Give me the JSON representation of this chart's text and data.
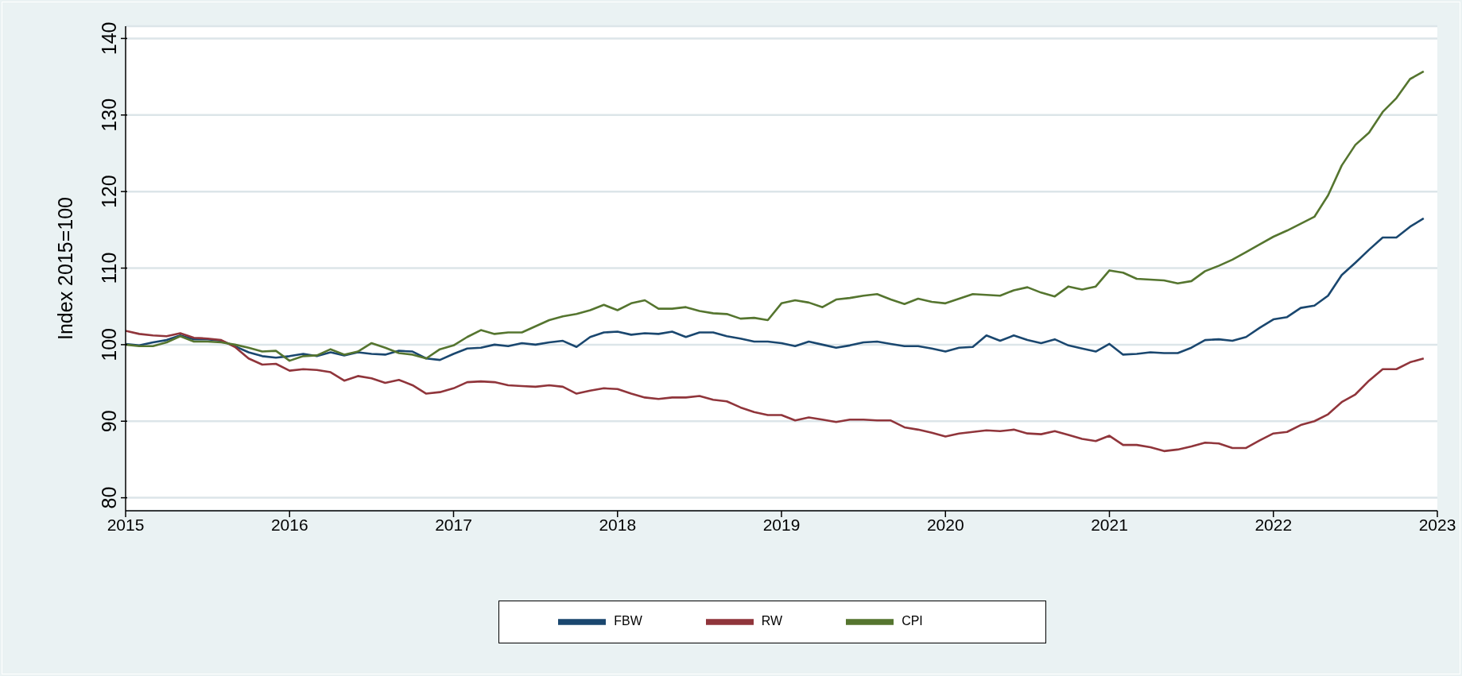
{
  "chart_data": {
    "type": "line",
    "ylabel": "Index 2015=100",
    "x": [
      "2015-01",
      "2015-02",
      "2015-03",
      "2015-04",
      "2015-05",
      "2015-06",
      "2015-07",
      "2015-08",
      "2015-09",
      "2015-10",
      "2015-11",
      "2015-12",
      "2016-01",
      "2016-02",
      "2016-03",
      "2016-04",
      "2016-05",
      "2016-06",
      "2016-07",
      "2016-08",
      "2016-09",
      "2016-10",
      "2016-11",
      "2016-12",
      "2017-01",
      "2017-02",
      "2017-03",
      "2017-04",
      "2017-05",
      "2017-06",
      "2017-07",
      "2017-08",
      "2017-09",
      "2017-10",
      "2017-11",
      "2017-12",
      "2018-01",
      "2018-02",
      "2018-03",
      "2018-04",
      "2018-05",
      "2018-06",
      "2018-07",
      "2018-08",
      "2018-09",
      "2018-10",
      "2018-11",
      "2018-12",
      "2019-01",
      "2019-02",
      "2019-03",
      "2019-04",
      "2019-05",
      "2019-06",
      "2019-07",
      "2019-08",
      "2019-09",
      "2019-10",
      "2019-11",
      "2019-12",
      "2020-01",
      "2020-02",
      "2020-03",
      "2020-04",
      "2020-05",
      "2020-06",
      "2020-07",
      "2020-08",
      "2020-09",
      "2020-10",
      "2020-11",
      "2020-12",
      "2021-01",
      "2021-02",
      "2021-03",
      "2021-04",
      "2021-05",
      "2021-06",
      "2021-07",
      "2021-08",
      "2021-09",
      "2021-10",
      "2021-11",
      "2021-12",
      "2022-01",
      "2022-02",
      "2022-03",
      "2022-04",
      "2022-05",
      "2022-06",
      "2022-07",
      "2022-08",
      "2022-09",
      "2022-10",
      "2022-11",
      "2022-12"
    ],
    "series": [
      {
        "name": "FBW",
        "color": "#1a476f",
        "values": [
          100.1,
          99.9,
          100.3,
          100.6,
          101.2,
          100.7,
          100.7,
          100.5,
          99.8,
          99.0,
          98.5,
          98.3,
          98.5,
          98.8,
          98.5,
          99.0,
          98.6,
          99.0,
          98.8,
          98.7,
          99.2,
          99.1,
          98.2,
          98.0,
          98.8,
          99.5,
          99.6,
          100.0,
          99.8,
          100.2,
          100.0,
          100.3,
          100.5,
          99.7,
          101.0,
          101.6,
          101.7,
          101.3,
          101.5,
          101.4,
          101.7,
          101.0,
          101.6,
          101.6,
          101.1,
          100.8,
          100.4,
          100.4,
          100.2,
          99.8,
          100.4,
          100.0,
          99.6,
          99.9,
          100.3,
          100.4,
          100.1,
          99.8,
          99.8,
          99.5,
          99.1,
          99.6,
          99.7,
          101.2,
          100.5,
          101.2,
          100.6,
          100.2,
          100.7,
          99.9,
          99.5,
          99.1,
          100.1,
          98.7,
          98.8,
          99.0,
          98.9,
          98.9,
          99.6,
          100.6,
          100.7,
          100.5,
          101.0,
          102.2,
          103.3,
          103.6,
          104.8,
          105.1,
          106.4,
          109.1,
          110.7,
          112.4,
          114.0,
          114.0,
          115.4,
          116.5
        ]
      },
      {
        "name": "RW",
        "color": "#90353b",
        "values": [
          101.8,
          101.4,
          101.2,
          101.1,
          101.5,
          100.9,
          100.8,
          100.6,
          99.7,
          98.2,
          97.4,
          97.5,
          96.6,
          96.8,
          96.7,
          96.4,
          95.3,
          95.9,
          95.6,
          95.0,
          95.4,
          94.7,
          93.6,
          93.8,
          94.3,
          95.1,
          95.2,
          95.1,
          94.7,
          94.6,
          94.5,
          94.7,
          94.5,
          93.6,
          94.0,
          94.3,
          94.2,
          93.6,
          93.1,
          92.9,
          93.1,
          93.1,
          93.3,
          92.8,
          92.6,
          91.8,
          91.2,
          90.8,
          90.8,
          90.1,
          90.5,
          90.2,
          89.9,
          90.2,
          90.2,
          90.1,
          90.1,
          89.2,
          88.9,
          88.5,
          88.0,
          88.4,
          88.6,
          88.8,
          88.7,
          88.9,
          88.4,
          88.3,
          88.7,
          88.2,
          87.7,
          87.4,
          88.1,
          86.9,
          86.9,
          86.6,
          86.1,
          86.3,
          86.7,
          87.2,
          87.1,
          86.5,
          86.5,
          87.5,
          88.4,
          88.6,
          89.5,
          90.0,
          90.9,
          92.5,
          93.5,
          95.3,
          96.8,
          96.8,
          97.7,
          98.2
        ]
      },
      {
        "name": "CPI",
        "color": "#55752f",
        "values": [
          100.0,
          99.8,
          99.8,
          100.3,
          101.1,
          100.4,
          100.4,
          100.3,
          100.0,
          99.6,
          99.1,
          99.2,
          97.9,
          98.5,
          98.6,
          99.4,
          98.7,
          99.1,
          100.2,
          99.6,
          98.9,
          98.7,
          98.2,
          99.4,
          99.9,
          101.0,
          101.9,
          101.4,
          101.6,
          101.6,
          102.4,
          103.2,
          103.7,
          104.0,
          104.5,
          105.2,
          104.5,
          105.4,
          105.8,
          104.7,
          104.7,
          104.9,
          104.4,
          104.1,
          104.0,
          103.4,
          103.5,
          103.2,
          105.4,
          105.8,
          105.5,
          104.9,
          105.9,
          106.1,
          106.4,
          106.6,
          105.9,
          105.3,
          106.0,
          105.6,
          105.4,
          106.0,
          106.6,
          106.5,
          106.4,
          107.1,
          107.5,
          106.8,
          106.3,
          107.6,
          107.2,
          107.6,
          109.7,
          109.4,
          108.6,
          108.5,
          108.4,
          108.0,
          108.3,
          109.6,
          110.3,
          111.1,
          112.1,
          113.1,
          114.1,
          114.9,
          115.8,
          116.7,
          119.5,
          123.4,
          126.1,
          127.7,
          130.4,
          132.2,
          134.7,
          135.7
        ]
      }
    ],
    "xlim": [
      "2015",
      "2023"
    ],
    "xticks": [
      "2015",
      "2016",
      "2017",
      "2018",
      "2019",
      "2020",
      "2021",
      "2022",
      "2023"
    ],
    "ylim": [
      78.3,
      141.6
    ],
    "yticks": [
      80,
      90,
      100,
      110,
      120,
      130,
      140
    ],
    "grid": "y",
    "legend": "bottom",
    "marker": "none",
    "line_style": "solid"
  }
}
